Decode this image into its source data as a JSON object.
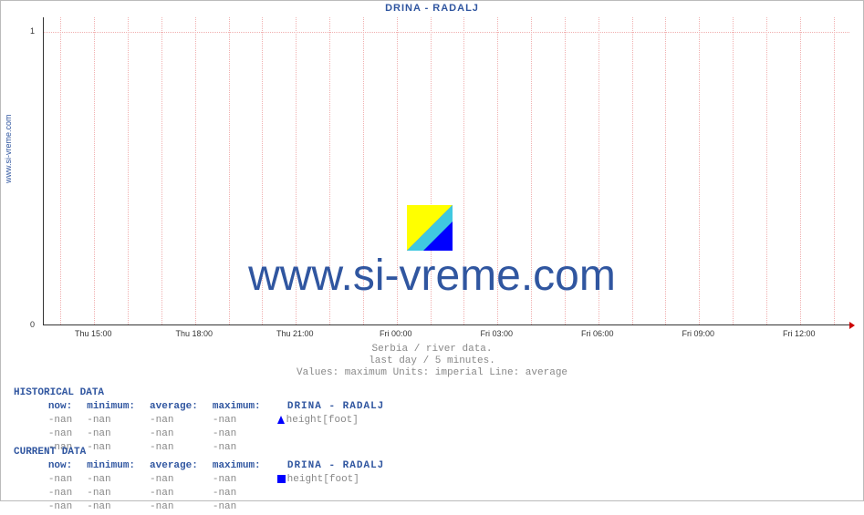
{
  "title": "DRINA -  RADALJ",
  "ylabel_text": "www.si-vreme.com",
  "watermark_text": "www.si-vreme.com",
  "chart": {
    "type": "line",
    "background_color": "#ffffff",
    "grid_color": "#f0b0b0",
    "axis_color": "#333333",
    "arrow_color": "#cc0000",
    "xlim": [
      "Thu 13:30",
      "Fri 13:30"
    ],
    "ylim": [
      0,
      1.05
    ],
    "yticks": [
      {
        "label": "0",
        "frac": 0.0
      },
      {
        "label": "1",
        "frac": 0.952
      }
    ],
    "xticks_hours": [
      "Thu 15:00",
      "Thu 18:00",
      "Thu 21:00",
      "Fri 00:00",
      "Fri 03:00",
      "Fri 06:00",
      "Fri 09:00",
      "Fri 12:00"
    ],
    "xtick_start_frac": 0.0625,
    "xtick_step_frac": 0.125,
    "vgrid_per_major": 3
  },
  "logo_colors": {
    "yellow": "#ffff00",
    "blue": "#0000ff",
    "cyan": "#40c8e0"
  },
  "captions": {
    "line1": "Serbia / river data.",
    "line2": "last day / 5 minutes.",
    "line3": "Values: maximum  Units: imperial  Line: average"
  },
  "historical": {
    "header": "HISTORICAL DATA",
    "cols": [
      "now:",
      "minimum:",
      "average:",
      "maximum:"
    ],
    "series_label": "DRINA -  RADALJ",
    "rows": [
      {
        "cells": [
          "-nan",
          "-nan",
          "-nan",
          "-nan"
        ],
        "swatch": "#0000ff",
        "swatch_shape": "tri",
        "unit": "height[foot]"
      },
      {
        "cells": [
          "-nan",
          "-nan",
          "-nan",
          "-nan"
        ]
      },
      {
        "cells": [
          "-nan",
          "-nan",
          "-nan",
          "-nan"
        ]
      }
    ]
  },
  "current": {
    "header": "CURRENT DATA",
    "cols": [
      "now:",
      "minimum:",
      "average:",
      "maximum:"
    ],
    "series_label": "DRINA -  RADALJ",
    "rows": [
      {
        "cells": [
          "-nan",
          "-nan",
          "-nan",
          "-nan"
        ],
        "swatch": "#0000ff",
        "swatch_shape": "square",
        "unit": "height[foot]"
      },
      {
        "cells": [
          "-nan",
          "-nan",
          "-nan",
          "-nan"
        ]
      },
      {
        "cells": [
          "-nan",
          "-nan",
          "-nan",
          "-nan"
        ]
      }
    ]
  },
  "text_colors": {
    "title": "#3056a0",
    "caption": "#888888",
    "nan": "#888888",
    "header": "#3056a0"
  },
  "fonts": {
    "title_size_pt": 11,
    "watermark_size_pt": 48,
    "mono_size_pt": 11,
    "tick_size_pt": 9
  }
}
